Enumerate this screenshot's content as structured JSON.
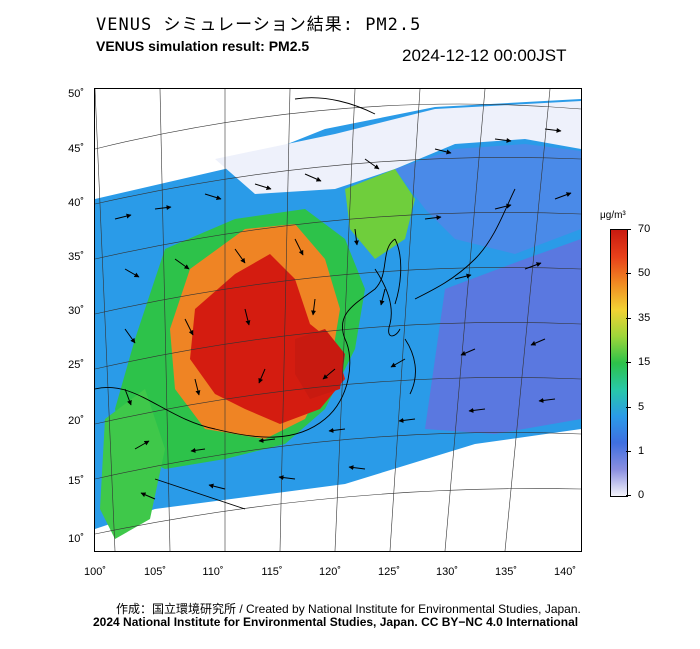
{
  "header": {
    "title_jp": "VENUS シミュレーション結果: PM2.5",
    "title_en": "VENUS simulation result: PM2.5",
    "timestamp": "2024-12-12 00:00JST"
  },
  "map": {
    "lat_ticks": [
      "50˚",
      "45˚",
      "40˚",
      "35˚",
      "30˚",
      "25˚",
      "20˚",
      "15˚",
      "10˚"
    ],
    "lon_ticks": [
      "100˚",
      "105˚",
      "110˚",
      "115˚",
      "120˚",
      "125˚",
      "130˚",
      "135˚",
      "140˚"
    ],
    "colors": {
      "very_high": "#d41c10",
      "high": "#ef8424",
      "moderate": "#2dc24a",
      "low": "#2a9be8",
      "very_low": "#5a78e0",
      "none": "#eef1fb"
    }
  },
  "colorbar": {
    "unit": "μg/m³",
    "labels": [
      "70",
      "50",
      "35",
      "15",
      "5",
      "1",
      "0"
    ]
  },
  "footer": {
    "credit_jp": "作成：国立環境研究所 / Created by National Institute for Environmental Studies, Japan.",
    "credit_en": "2024 National Institute for Environmental Studies, Japan. CC BY−NC 4.0 International"
  }
}
